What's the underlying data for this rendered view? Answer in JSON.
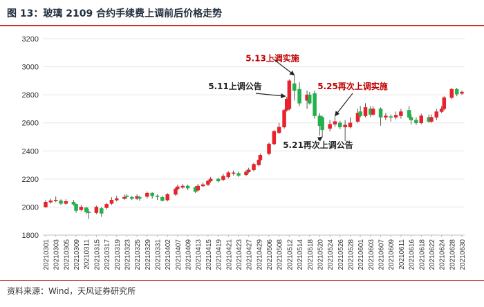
{
  "header": {
    "title": "图 13：玻璃 2109 合约手续费上调前后价格走势"
  },
  "footer": {
    "source": "资料来源：Wind，天风证券研究所"
  },
  "colors": {
    "up": "#e8222b",
    "down": "#22b14c",
    "grid": "#e6e6e6",
    "axis_text": "#333333",
    "annotation_red": "#c00000",
    "annotation_dark": "#222222",
    "accent": "#c0392b"
  },
  "chart_data": {
    "type": "candlestick",
    "title": "玻璃 2109 合约手续费上调前后价格走势",
    "ylim": [
      1800,
      3200
    ],
    "yticks": [
      1800,
      2000,
      2200,
      2400,
      2600,
      2800,
      3000,
      3200
    ],
    "xtick_labels": [
      "20210301",
      "20210303",
      "20210305",
      "20210309",
      "20210311",
      "20210315",
      "20210317",
      "20210319",
      "20210323",
      "20210325",
      "20210329",
      "20210331",
      "20210402",
      "20210407",
      "20210409",
      "20210413",
      "20210415",
      "20210419",
      "20210421",
      "20210423",
      "20210427",
      "20210429",
      "20210506",
      "20210508",
      "20210512",
      "20210514",
      "20210518",
      "20210520",
      "20210524",
      "20210526",
      "20210528",
      "20210601",
      "20210603",
      "20210607",
      "20210609",
      "20210611",
      "20210616",
      "20210618",
      "20210622",
      "20210624",
      "20210628",
      "20210630"
    ],
    "candles": [
      {
        "date": "20210301",
        "open": 2000,
        "close": 2035,
        "high": 2050,
        "low": 1995
      },
      {
        "date": "20210302",
        "open": 2035,
        "close": 2045,
        "high": 2060,
        "low": 2025
      },
      {
        "date": "20210303",
        "open": 2045,
        "close": 2050,
        "high": 2075,
        "low": 2035
      },
      {
        "date": "20210304",
        "open": 2045,
        "close": 2025,
        "high": 2055,
        "low": 2015
      },
      {
        "date": "20210305",
        "open": 2025,
        "close": 2040,
        "high": 2055,
        "low": 2015
      },
      {
        "date": "20210308",
        "open": 2035,
        "close": 2020,
        "high": 2050,
        "low": 2010
      },
      {
        "date": "20210309",
        "open": 2020,
        "close": 1975,
        "high": 2025,
        "low": 1960
      },
      {
        "date": "20210310",
        "open": 1980,
        "close": 2000,
        "high": 2015,
        "low": 1970
      },
      {
        "date": "20210311",
        "open": 1995,
        "close": 1965,
        "high": 2000,
        "low": 1950
      },
      {
        "date": "20210312",
        "open": 1965,
        "close": 1960,
        "high": 1985,
        "low": 1915
      },
      {
        "date": "20210315",
        "open": 1960,
        "close": 2000,
        "high": 2010,
        "low": 1950
      },
      {
        "date": "20210316",
        "open": 1990,
        "close": 1955,
        "high": 2000,
        "low": 1930
      },
      {
        "date": "20210317",
        "open": 1995,
        "close": 2020,
        "high": 2030,
        "low": 1985
      },
      {
        "date": "20210318",
        "open": 2025,
        "close": 2050,
        "high": 2070,
        "low": 2015
      },
      {
        "date": "20210319",
        "open": 2050,
        "close": 2060,
        "high": 2080,
        "low": 2040
      },
      {
        "date": "20210322",
        "open": 2060,
        "close": 2070,
        "high": 2090,
        "low": 2050
      },
      {
        "date": "20210323",
        "open": 2080,
        "close": 2075,
        "high": 2090,
        "low": 2060
      },
      {
        "date": "20210324",
        "open": 2070,
        "close": 2060,
        "high": 2080,
        "low": 2050
      },
      {
        "date": "20210325",
        "open": 2060,
        "close": 2075,
        "high": 2090,
        "low": 2050
      },
      {
        "date": "20210326",
        "open": 2070,
        "close": 2060,
        "high": 2080,
        "low": 2045
      },
      {
        "date": "20210329",
        "open": 2075,
        "close": 2100,
        "high": 2110,
        "low": 2060
      },
      {
        "date": "20210330",
        "open": 2100,
        "close": 2080,
        "high": 2105,
        "low": 2060
      },
      {
        "date": "20210331",
        "open": 2080,
        "close": 2075,
        "high": 2090,
        "low": 2050
      },
      {
        "date": "20210401",
        "open": 2070,
        "close": 2045,
        "high": 2080,
        "low": 2040
      },
      {
        "date": "20210402",
        "open": 2050,
        "close": 2090,
        "high": 2100,
        "low": 2040
      },
      {
        "date": "20210406",
        "open": 2090,
        "close": 2130,
        "high": 2140,
        "low": 2080
      },
      {
        "date": "20210407",
        "open": 2130,
        "close": 2145,
        "high": 2160,
        "low": 2120
      },
      {
        "date": "20210408",
        "open": 2140,
        "close": 2150,
        "high": 2165,
        "low": 2130
      },
      {
        "date": "20210409",
        "open": 2150,
        "close": 2135,
        "high": 2160,
        "low": 2120
      },
      {
        "date": "20210412",
        "open": 2140,
        "close": 2110,
        "high": 2150,
        "low": 2100
      },
      {
        "date": "20210413",
        "open": 2120,
        "close": 2150,
        "high": 2165,
        "low": 2110
      },
      {
        "date": "20210414",
        "open": 2150,
        "close": 2160,
        "high": 2175,
        "low": 2140
      },
      {
        "date": "20210415",
        "open": 2160,
        "close": 2185,
        "high": 2195,
        "low": 2150
      },
      {
        "date": "20210416",
        "open": 2185,
        "close": 2200,
        "high": 2215,
        "low": 2175
      },
      {
        "date": "20210419",
        "open": 2200,
        "close": 2185,
        "high": 2210,
        "low": 2175
      },
      {
        "date": "20210420",
        "open": 2195,
        "close": 2220,
        "high": 2235,
        "low": 2185
      },
      {
        "date": "20210421",
        "open": 2215,
        "close": 2245,
        "high": 2255,
        "low": 2205
      },
      {
        "date": "20210422",
        "open": 2240,
        "close": 2245,
        "high": 2260,
        "low": 2225
      },
      {
        "date": "20210423",
        "open": 2240,
        "close": 2225,
        "high": 2255,
        "low": 2215
      },
      {
        "date": "20210426",
        "open": 2230,
        "close": 2250,
        "high": 2265,
        "low": 2220
      },
      {
        "date": "20210427",
        "open": 2250,
        "close": 2265,
        "high": 2280,
        "low": 2240
      },
      {
        "date": "20210428",
        "open": 2265,
        "close": 2305,
        "high": 2315,
        "low": 2255
      },
      {
        "date": "20210429",
        "open": 2300,
        "close": 2335,
        "high": 2345,
        "low": 2290
      },
      {
        "date": "20210430",
        "open": 2335,
        "close": 2370,
        "high": 2380,
        "low": 2320
      },
      {
        "date": "20210506",
        "open": 2380,
        "close": 2450,
        "high": 2460,
        "low": 2370
      },
      {
        "date": "20210507",
        "open": 2450,
        "close": 2540,
        "high": 2550,
        "low": 2440
      },
      {
        "date": "20210508",
        "open": 2530,
        "close": 2570,
        "high": 2600,
        "low": 2520
      },
      {
        "date": "20210510",
        "open": 2570,
        "close": 2690,
        "high": 2700,
        "low": 2560
      },
      {
        "date": "20210511",
        "open": 2690,
        "close": 2770,
        "high": 2785,
        "low": 2680
      },
      {
        "date": "20210512",
        "open": 2700,
        "close": 2900,
        "high": 2910,
        "low": 2690
      },
      {
        "date": "20210513",
        "open": 2880,
        "close": 2830,
        "high": 2940,
        "low": 2760
      },
      {
        "date": "20210514",
        "open": 2840,
        "close": 2740,
        "high": 2890,
        "low": 2720
      },
      {
        "date": "20210517",
        "open": 2760,
        "close": 2800,
        "high": 2830,
        "low": 2700
      },
      {
        "date": "20210518",
        "open": 2800,
        "close": 2740,
        "high": 2820,
        "low": 2730
      },
      {
        "date": "20210519",
        "open": 2810,
        "close": 2650,
        "high": 2830,
        "low": 2630
      },
      {
        "date": "20210520",
        "open": 2650,
        "close": 2580,
        "high": 2670,
        "low": 2510
      },
      {
        "date": "20210521",
        "open": 2640,
        "close": 2550,
        "high": 2650,
        "low": 2500
      },
      {
        "date": "20210524",
        "open": 2560,
        "close": 2590,
        "high": 2620,
        "low": 2540
      },
      {
        "date": "20210525",
        "open": 2590,
        "close": 2610,
        "high": 2650,
        "low": 2570
      },
      {
        "date": "20210526",
        "open": 2600,
        "close": 2570,
        "high": 2615,
        "low": 2555
      },
      {
        "date": "20210527",
        "open": 2570,
        "close": 2585,
        "high": 2620,
        "low": 2470
      },
      {
        "date": "20210528",
        "open": 2570,
        "close": 2600,
        "high": 2640,
        "low": 2560
      },
      {
        "date": "20210531",
        "open": 2610,
        "close": 2670,
        "high": 2700,
        "low": 2600
      },
      {
        "date": "20210601",
        "open": 2680,
        "close": 2650,
        "high": 2720,
        "low": 2640
      },
      {
        "date": "20210602",
        "open": 2650,
        "close": 2710,
        "high": 2740,
        "low": 2640
      },
      {
        "date": "20210603",
        "open": 2700,
        "close": 2660,
        "high": 2720,
        "low": 2640
      },
      {
        "date": "20210604",
        "open": 2660,
        "close": 2700,
        "high": 2720,
        "low": 2650
      },
      {
        "date": "20210607",
        "open": 2700,
        "close": 2640,
        "high": 2710,
        "low": 2580
      },
      {
        "date": "20210608",
        "open": 2640,
        "close": 2650,
        "high": 2670,
        "low": 2620
      },
      {
        "date": "20210609",
        "open": 2645,
        "close": 2640,
        "high": 2660,
        "low": 2610
      },
      {
        "date": "20210610",
        "open": 2640,
        "close": 2655,
        "high": 2680,
        "low": 2625
      },
      {
        "date": "20210611",
        "open": 2650,
        "close": 2680,
        "high": 2700,
        "low": 2630
      },
      {
        "date": "20210615",
        "open": 2690,
        "close": 2640,
        "high": 2720,
        "low": 2630
      },
      {
        "date": "20210616",
        "open": 2640,
        "close": 2620,
        "high": 2660,
        "low": 2590
      },
      {
        "date": "20210617",
        "open": 2620,
        "close": 2600,
        "high": 2640,
        "low": 2585
      },
      {
        "date": "20210618",
        "open": 2600,
        "close": 2650,
        "high": 2665,
        "low": 2590
      },
      {
        "date": "20210621",
        "open": 2640,
        "close": 2610,
        "high": 2660,
        "low": 2600
      },
      {
        "date": "20210622",
        "open": 2610,
        "close": 2640,
        "high": 2660,
        "low": 2600
      },
      {
        "date": "20210623",
        "open": 2640,
        "close": 2680,
        "high": 2700,
        "low": 2620
      },
      {
        "date": "20210624",
        "open": 2680,
        "close": 2700,
        "high": 2720,
        "low": 2670
      },
      {
        "date": "20210625",
        "open": 2700,
        "close": 2780,
        "high": 2790,
        "low": 2690
      },
      {
        "date": "20210628",
        "open": 2780,
        "close": 2840,
        "high": 2850,
        "low": 2770
      },
      {
        "date": "20210629",
        "open": 2840,
        "close": 2805,
        "high": 2850,
        "low": 2790
      },
      {
        "date": "20210630",
        "open": 2810,
        "close": 2820,
        "high": 2830,
        "low": 2800
      }
    ],
    "annotations": [
      {
        "text": "5.13上调实施",
        "date": "20210513",
        "label_value": 3040,
        "arrow_to_value": 2940,
        "color": "red"
      },
      {
        "text": "5.11上调公告",
        "date": "20210511",
        "label_value": 2840,
        "arrow_to_value": 2790,
        "color": "dark"
      },
      {
        "text": "5.25再次上调实施",
        "date": "20210525",
        "label_value": 2840,
        "arrow_to_value": 2650,
        "color": "red"
      },
      {
        "text": "5.21再次上调公告",
        "date": "20210521",
        "label_value": 2420,
        "arrow_to_value": 2500,
        "color": "dark"
      }
    ]
  }
}
